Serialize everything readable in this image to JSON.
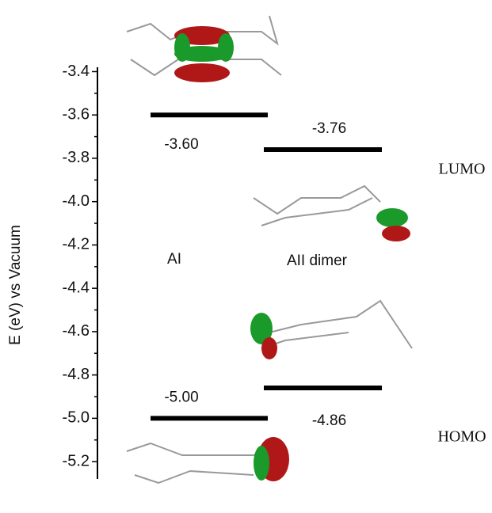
{
  "chart_data": {
    "type": "energy-level",
    "y_label": "E (eV) vs Vacuum",
    "categories": [
      "AI",
      "AII dimer"
    ],
    "series": [
      {
        "name": "LUMO",
        "color": "#000000",
        "values": [
          -3.6,
          -3.76
        ],
        "value_labels": [
          "-3.60",
          "-3.76"
        ]
      },
      {
        "name": "HOMO",
        "color": "#000000",
        "values": [
          -5.0,
          -4.86
        ],
        "value_labels": [
          "-5.00",
          "-4.86"
        ]
      }
    ],
    "ylim": [
      -5.28,
      -3.38
    ],
    "yticks": [
      -3.4,
      -3.6,
      -3.8,
      {
        "value": -4,
        "label": "-4.0"
      },
      -4.2,
      -4.4,
      -4.6,
      -4.8,
      {
        "value": -5,
        "label": "-5.0"
      },
      -5.2
    ]
  }
}
